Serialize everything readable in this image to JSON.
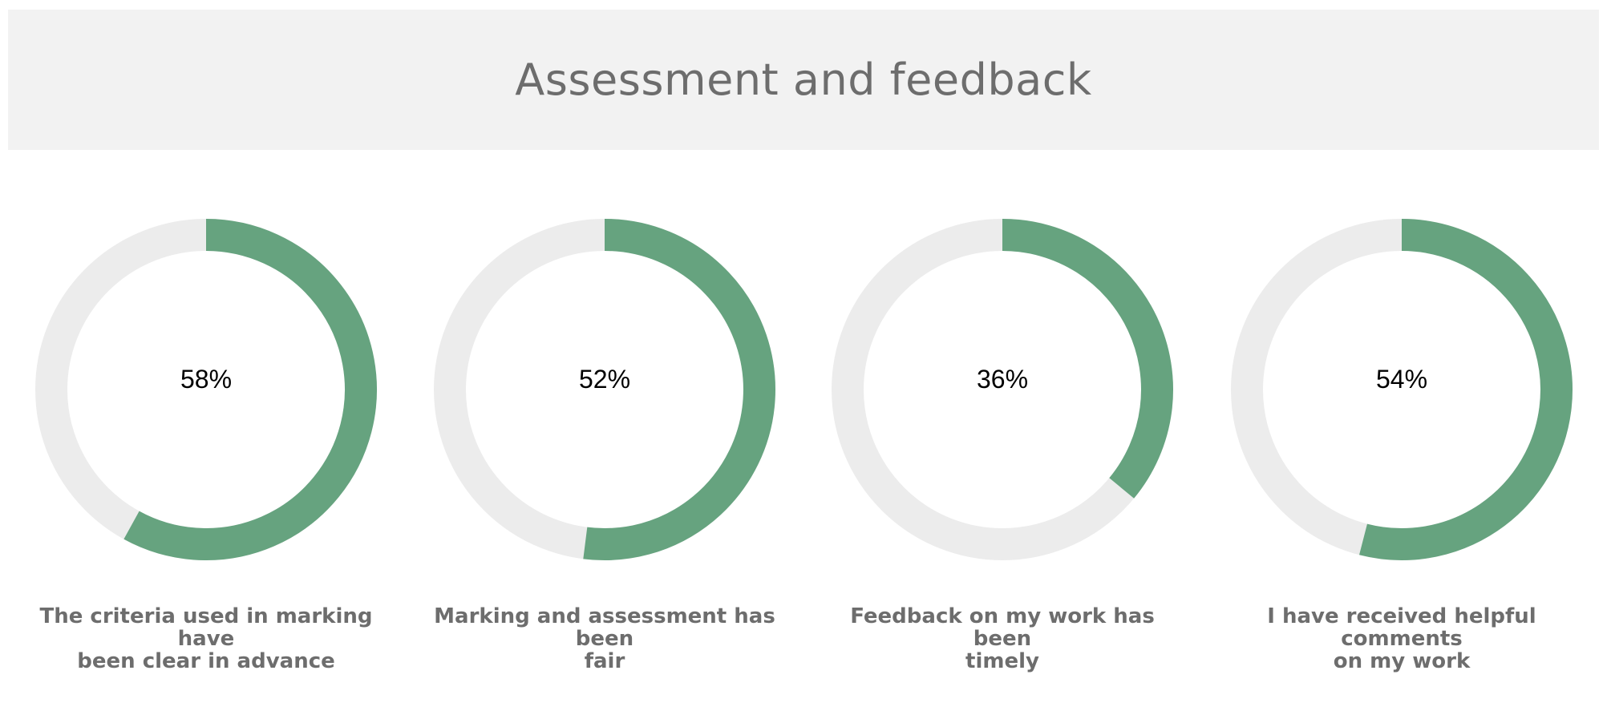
{
  "header": {
    "title": "Assessment and feedback"
  },
  "colors": {
    "filled": "#66a37f",
    "track": "#ececec"
  },
  "chart_data": [
    {
      "type": "pie",
      "variant": "donut",
      "value": 58,
      "label": "58%",
      "caption_lines": [
        "The criteria used in marking have",
        "been clear in advance"
      ]
    },
    {
      "type": "pie",
      "variant": "donut",
      "value": 52,
      "label": "52%",
      "caption_lines": [
        "Marking and assessment has been",
        "fair"
      ]
    },
    {
      "type": "pie",
      "variant": "donut",
      "value": 36,
      "label": "36%",
      "caption_lines": [
        "Feedback on my work has been",
        "timely"
      ]
    },
    {
      "type": "pie",
      "variant": "donut",
      "value": 54,
      "label": "54%",
      "caption_lines": [
        "I have received helpful comments",
        "on my work"
      ]
    }
  ]
}
